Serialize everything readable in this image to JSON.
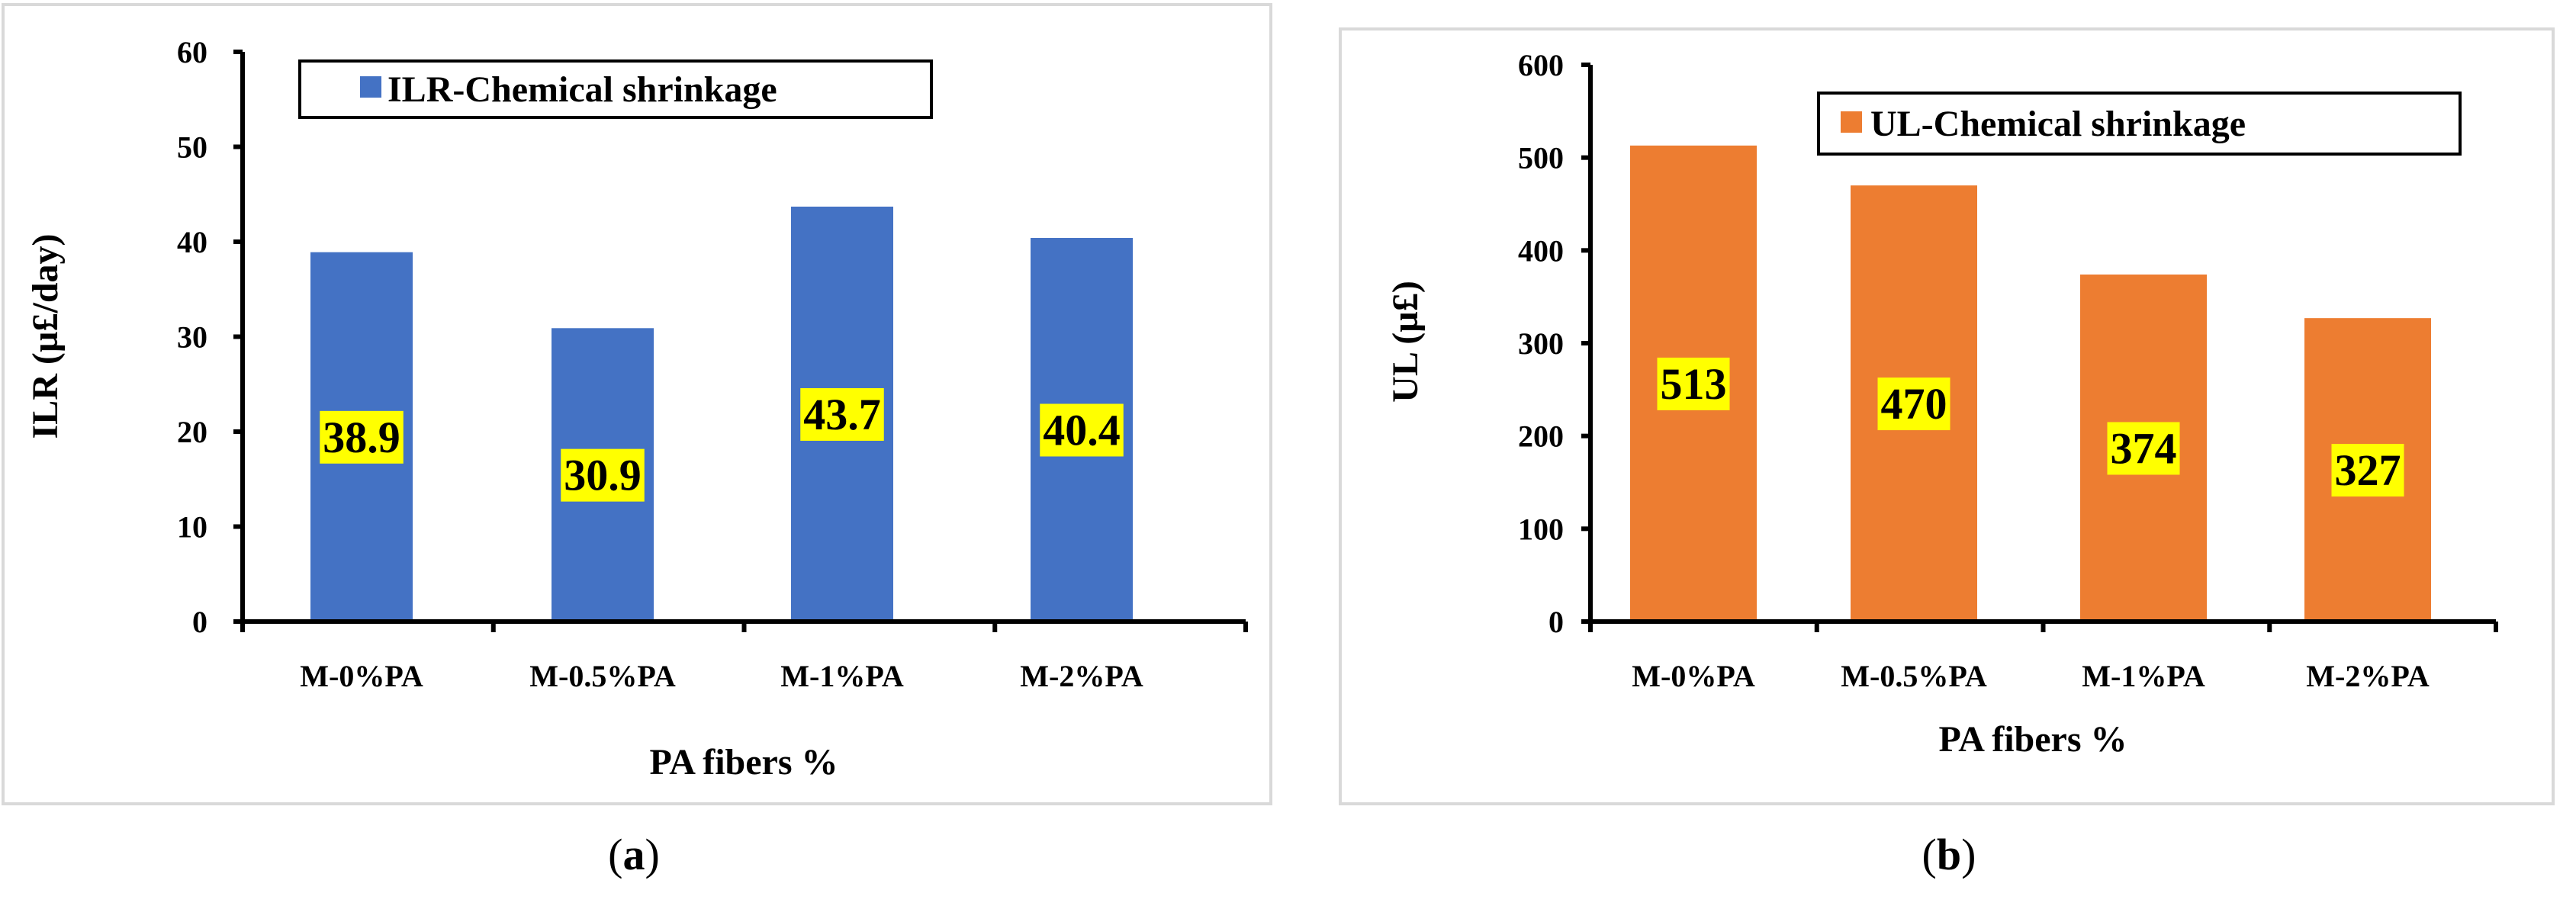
{
  "chart_data": [
    {
      "id": "panel-a",
      "type": "bar",
      "caption": "a",
      "categories": [
        "M-0%PA",
        "M-0.5%PA",
        "M-1%PA",
        "M-2%PA"
      ],
      "values": [
        38.9,
        30.9,
        43.7,
        40.4
      ],
      "data_labels": [
        "38.9",
        "30.9",
        "43.7",
        "40.4"
      ],
      "series_name": "ILR-Chemical shrinkage",
      "color": "#4472C4",
      "xlabel": "PA fibers %",
      "ylabel": "ILR (µ£/day)",
      "ylim": [
        0,
        60
      ],
      "yticks": [
        0,
        10,
        20,
        30,
        40,
        50,
        60
      ],
      "ytick_labels": [
        "0",
        "10",
        "20",
        "30",
        "40",
        "50",
        "60"
      ],
      "legend_position": "top-center",
      "grid": false
    },
    {
      "id": "panel-b",
      "type": "bar",
      "caption": "b",
      "categories": [
        "M-0%PA",
        "M-0.5%PA",
        "M-1%PA",
        "M-2%PA"
      ],
      "values": [
        513,
        470,
        374,
        327
      ],
      "data_labels": [
        "513",
        "470",
        "374",
        "327"
      ],
      "series_name": "UL-Chemical shrinkage",
      "color": "#ED7D31",
      "xlabel": "PA fibers %",
      "ylabel": "UL (µ£)",
      "ylim": [
        0,
        600
      ],
      "yticks": [
        0,
        100,
        200,
        300,
        400,
        500,
        600
      ],
      "ytick_labels": [
        "0",
        "100",
        "200",
        "300",
        "400",
        "500",
        "600"
      ],
      "legend_position": "top-right",
      "grid": false
    }
  ]
}
